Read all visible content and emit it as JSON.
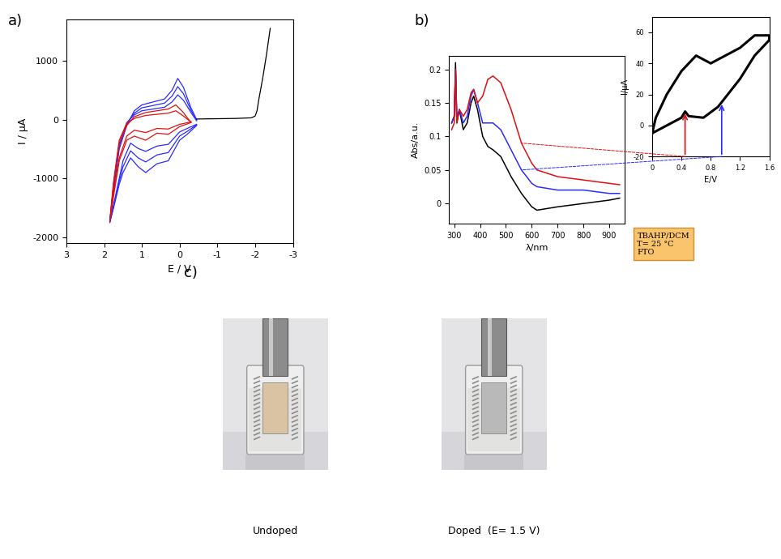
{
  "chart_data": [
    {
      "type": "line",
      "x_label": "E / V",
      "y_label": "I / µA",
      "xlim": [
        3,
        -3
      ],
      "xticks": [
        3,
        2,
        1,
        0,
        -1,
        -2,
        -3
      ],
      "ylim": [
        -2100,
        1700
      ],
      "yticks": [
        -2000,
        -1000,
        0,
        1000
      ],
      "series": [
        {
          "color": "#2b2bff",
          "x": [
            -0.45,
            -0.2,
            0,
            0.3,
            0.6,
            0.9,
            1.1,
            1.3,
            1.5,
            1.6,
            1.75,
            1.85,
            1.75,
            1.6,
            1.4,
            1.2,
            1.0,
            0.7,
            0.4,
            0.2,
            0.05,
            -0.1,
            -0.3,
            -0.45
          ],
          "values": [
            -100,
            -250,
            -350,
            -700,
            -750,
            -900,
            -800,
            -650,
            -900,
            -1100,
            -1500,
            -1750,
            -1200,
            -500,
            -100,
            150,
            250,
            300,
            350,
            500,
            700,
            550,
            200,
            0
          ]
        },
        {
          "color": "#2b2bff",
          "x": [
            -0.45,
            -0.2,
            0,
            0.3,
            0.6,
            0.9,
            1.1,
            1.3,
            1.5,
            1.6,
            1.75,
            1.85,
            1.75,
            1.6,
            1.4,
            1.2,
            1.0,
            0.7,
            0.4,
            0.2,
            0.05,
            -0.1,
            -0.3,
            -0.45
          ],
          "values": [
            -90,
            -200,
            -280,
            -560,
            -600,
            -720,
            -650,
            -530,
            -800,
            -1050,
            -1480,
            -1740,
            -1150,
            -450,
            -70,
            110,
            200,
            240,
            280,
            400,
            560,
            440,
            160,
            -10
          ]
        },
        {
          "color": "#2b2bff",
          "x": [
            -0.45,
            -0.2,
            0,
            0.3,
            0.6,
            0.9,
            1.1,
            1.3,
            1.5,
            1.6,
            1.75,
            1.85,
            1.75,
            1.6,
            1.4,
            1.2,
            1.0,
            0.7,
            0.4,
            0.2,
            0.05,
            -0.1,
            -0.3,
            -0.45
          ],
          "values": [
            -80,
            -150,
            -210,
            -420,
            -450,
            -540,
            -490,
            -400,
            -700,
            -1000,
            -1450,
            -1730,
            -1100,
            -420,
            -50,
            80,
            150,
            180,
            210,
            300,
            420,
            330,
            120,
            -20
          ]
        },
        {
          "color": "#e01010",
          "x": [
            -0.3,
            0,
            0.3,
            0.6,
            0.9,
            1.2,
            1.4,
            1.6,
            1.75,
            1.85,
            1.75,
            1.6,
            1.4,
            1.2,
            0.9,
            0.6,
            0.3,
            0.1,
            -0.1,
            -0.3
          ],
          "values": [
            -50,
            -120,
            -250,
            -230,
            -350,
            -280,
            -350,
            -700,
            -1300,
            -1750,
            -1100,
            -400,
            -100,
            50,
            120,
            150,
            180,
            250,
            120,
            -50
          ]
        },
        {
          "color": "#e01010",
          "x": [
            -0.3,
            0,
            0.3,
            0.6,
            0.9,
            1.2,
            1.4,
            1.6,
            1.75,
            1.85,
            1.75,
            1.6,
            1.4,
            1.2,
            0.9,
            0.6,
            0.3,
            0.1,
            -0.1,
            -0.3
          ],
          "values": [
            -40,
            -80,
            -160,
            -150,
            -220,
            -180,
            -280,
            -650,
            -1250,
            -1720,
            -1050,
            -350,
            -60,
            20,
            70,
            90,
            110,
            150,
            60,
            -40
          ]
        },
        {
          "color": "#000000",
          "x": [
            -0.45,
            -1,
            -1.5,
            -1.9,
            -2.0,
            -2.05,
            -2.1,
            -2.2,
            -2.3,
            -2.4
          ],
          "values": [
            10,
            15,
            20,
            30,
            60,
            150,
            350,
            700,
            1100,
            1550
          ]
        }
      ]
    },
    {
      "type": "line",
      "x_label": "λ/nm",
      "y_label": "Abs/a.u.",
      "xlim": [
        280,
        960
      ],
      "xticks": [
        300,
        400,
        500,
        600,
        700,
        800,
        900
      ],
      "ylim": [
        -0.03,
        0.22
      ],
      "yticks": [
        0,
        0.05,
        0.1,
        0.15,
        0.2
      ],
      "annotations": [
        "TBAHP/DCM",
        "T= 25 °C",
        "FTO"
      ],
      "series": [
        {
          "color": "#000000",
          "x": [
            290,
            300,
            305,
            310,
            320,
            335,
            350,
            365,
            375,
            390,
            410,
            430,
            450,
            480,
            520,
            560,
            600,
            620,
            700,
            800,
            900,
            940
          ],
          "values": [
            0.12,
            0.13,
            0.21,
            0.12,
            0.14,
            0.11,
            0.12,
            0.15,
            0.16,
            0.14,
            0.1,
            0.085,
            0.08,
            0.07,
            0.04,
            0.015,
            -0.005,
            -0.01,
            -0.005,
            0.0,
            0.005,
            0.008
          ]
        },
        {
          "color": "#2b2bff",
          "x": [
            290,
            300,
            305,
            310,
            320,
            335,
            350,
            365,
            375,
            390,
            410,
            430,
            450,
            480,
            520,
            560,
            600,
            620,
            700,
            800,
            900,
            940
          ],
          "values": [
            0.12,
            0.13,
            0.2,
            0.13,
            0.14,
            0.12,
            0.13,
            0.16,
            0.17,
            0.15,
            0.12,
            0.12,
            0.12,
            0.11,
            0.08,
            0.05,
            0.03,
            0.025,
            0.02,
            0.02,
            0.015,
            0.015
          ]
        },
        {
          "color": "#e01010",
          "x": [
            290,
            300,
            305,
            310,
            320,
            335,
            350,
            365,
            375,
            390,
            410,
            430,
            450,
            480,
            520,
            560,
            600,
            620,
            700,
            800,
            900,
            940
          ],
          "values": [
            0.11,
            0.12,
            0.2,
            0.12,
            0.14,
            0.13,
            0.14,
            0.165,
            0.17,
            0.15,
            0.16,
            0.185,
            0.19,
            0.18,
            0.14,
            0.09,
            0.06,
            0.05,
            0.04,
            0.035,
            0.03,
            0.028
          ]
        }
      ]
    },
    {
      "type": "line",
      "x_label": "E/V",
      "y_label": "I/µA",
      "xlim": [
        0,
        1.6
      ],
      "xticks": [
        0,
        0.4,
        0.8,
        1.2,
        1.6
      ],
      "ylim": [
        -20,
        70
      ],
      "yticks": [
        -20,
        0,
        20,
        40,
        60
      ],
      "arrows": [
        {
          "x": 0.45,
          "color": "#e01010"
        },
        {
          "x": 0.95,
          "color": "#2b2bff"
        }
      ],
      "series": [
        {
          "color": "#000000",
          "x": [
            0,
            0.2,
            0.4,
            0.45,
            0.5,
            0.7,
            0.9,
            1.0,
            1.2,
            1.4,
            1.6,
            1.6,
            1.4,
            1.2,
            1.0,
            0.8,
            0.6,
            0.4,
            0.2,
            0.05,
            0
          ],
          "values": [
            -5,
            0,
            5,
            9,
            6,
            5,
            12,
            18,
            30,
            45,
            55,
            58,
            58,
            50,
            45,
            40,
            45,
            35,
            20,
            5,
            -5
          ]
        }
      ]
    }
  ],
  "figure": {
    "panel_labels": [
      "a)",
      "b)",
      "c)"
    ],
    "photos": [
      {
        "caption": "Undoped",
        "film_color": "#d9c3a3"
      },
      {
        "caption": "Doped  (E= 1.5 V)",
        "film_color": "#b9b9b9"
      }
    ]
  }
}
